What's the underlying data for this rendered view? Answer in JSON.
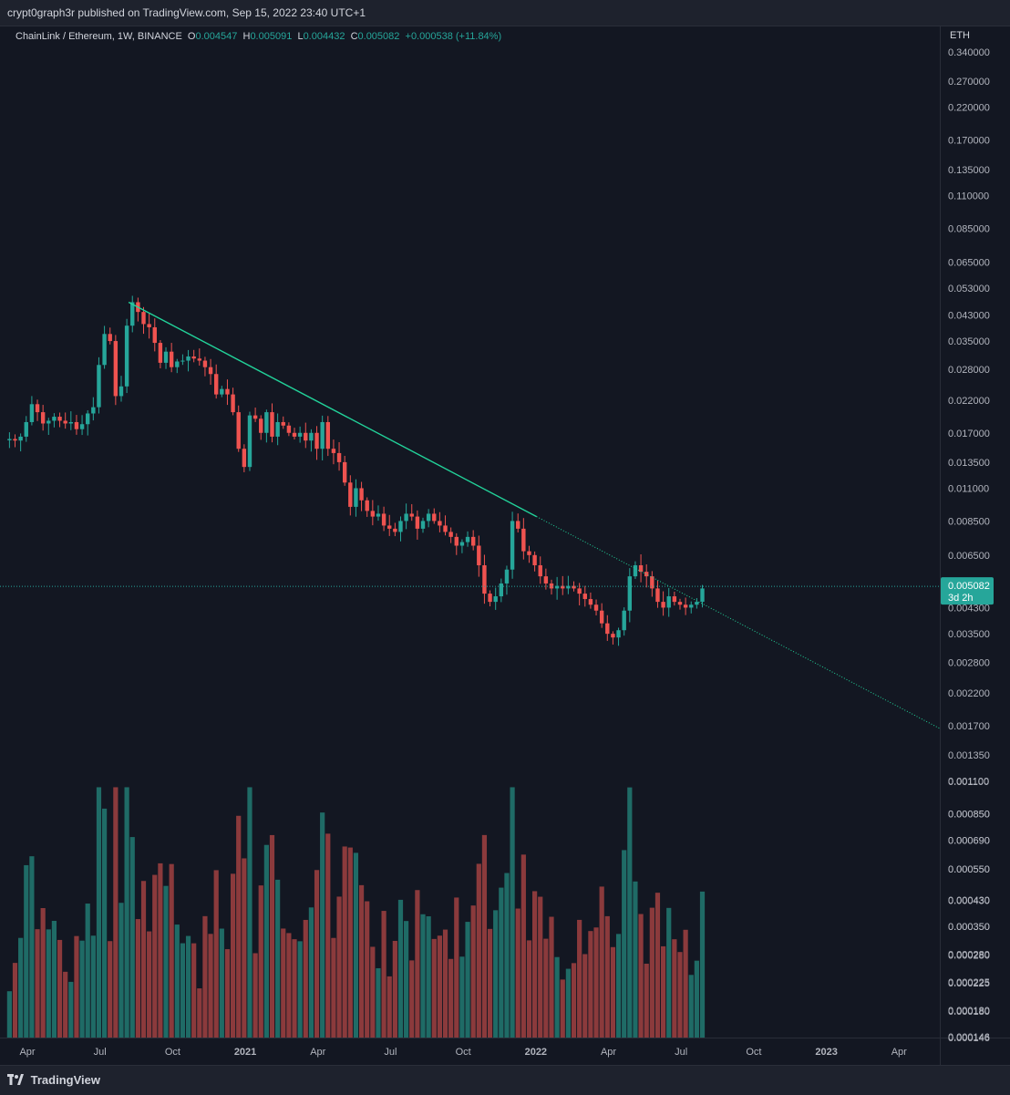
{
  "header": {
    "publish_text": "crypt0graph3r published on TradingView.com, Sep 15, 2022 23:40 UTC+1"
  },
  "legend": {
    "symbol": "ChainLink / Ethereum, 1W, BINANCE",
    "o_label": "O",
    "o_value": "0.004547",
    "h_label": "H",
    "h_value": "0.005091",
    "l_label": "L",
    "l_value": "0.004432",
    "c_label": "C",
    "c_value": "0.005082",
    "change": "+0.000538 (+11.84%)"
  },
  "price_axis": {
    "currency": "ETH",
    "last_price": "0.005082",
    "countdown": "3d 2h"
  },
  "footer": {
    "brand": "TradingView"
  },
  "colors": {
    "up": "#26a69a",
    "down": "#ef5350",
    "up_vol": "#1f6b66",
    "down_vol": "#8b3a3c",
    "trend": "#22d39a"
  },
  "chart_data": {
    "type": "candlestick",
    "scale": "log",
    "price_ticks": [
      0.34,
      0.27,
      0.22,
      0.17,
      0.135,
      0.11,
      0.085,
      0.065,
      0.053,
      0.043,
      0.035,
      0.028,
      0.022,
      0.017,
      0.0135,
      0.011,
      0.0085,
      0.0065,
      0.0053,
      0.0043,
      0.0035,
      0.0028,
      0.0022,
      0.0017,
      0.00135,
      0.0011,
      0.00085,
      0.00069,
      0.00055,
      0.00043,
      0.00035,
      0.00028,
      0.000225,
      0.00018,
      0.000146
    ],
    "price_tick_labels": [
      "0.340000",
      "0.270000",
      "0.220000",
      "0.170000",
      "0.135000",
      "0.110000",
      "0.085000",
      "0.065000",
      "0.053000",
      "0.043000",
      "0.035000",
      "0.028000",
      "0.022000",
      "0.017000",
      "0.013500",
      "0.011000",
      "0.008500",
      "0.006500",
      "0.005300",
      "0.004300",
      "0.003500",
      "0.002800",
      "0.002200",
      "0.001700",
      "0.001350",
      "0.001100",
      "0.000850",
      "0.000690",
      "0.000550",
      "0.000430",
      "0.000350",
      "0.000280",
      "0.000225",
      "0.000180",
      "0.000146"
    ],
    "time_labels": [
      {
        "label": "Apr",
        "week": 0
      },
      {
        "label": "Jul",
        "week": 13
      },
      {
        "label": "Oct",
        "week": 26
      },
      {
        "label": "2021",
        "week": 39
      },
      {
        "label": "Apr",
        "week": 52
      },
      {
        "label": "Jul",
        "week": 65
      },
      {
        "label": "Oct",
        "week": 78
      },
      {
        "label": "2022",
        "week": 91
      },
      {
        "label": "Apr",
        "week": 104
      },
      {
        "label": "Jul",
        "week": 117
      },
      {
        "label": "Oct",
        "week": 130
      },
      {
        "label": "2023",
        "week": 143
      },
      {
        "label": "Apr",
        "week": 156
      }
    ],
    "first_week_index": -3.2,
    "closes": [
      0.0162,
      0.016,
      0.0165,
      0.0185,
      0.0213,
      0.02,
      0.0183,
      0.0187,
      0.0193,
      0.0187,
      0.0183,
      0.0185,
      0.0175,
      0.0182,
      0.0198,
      0.0208,
      0.029,
      0.037,
      0.035,
      0.0227,
      0.0245,
      0.0395,
      0.0475,
      0.044,
      0.04,
      0.039,
      0.0345,
      0.0295,
      0.0322,
      0.0285,
      0.0298,
      0.03,
      0.031,
      0.0305,
      0.03,
      0.0285,
      0.027,
      0.023,
      0.024,
      0.023,
      0.02,
      0.015,
      0.013,
      0.0195,
      0.019,
      0.017,
      0.02,
      0.0165,
      0.0185,
      0.018,
      0.017,
      0.0165,
      0.017,
      0.016,
      0.017,
      0.015,
      0.0185,
      0.015,
      0.0145,
      0.0135,
      0.0115,
      0.0095,
      0.011,
      0.01,
      0.0092,
      0.0088,
      0.009,
      0.0082,
      0.008,
      0.0078,
      0.0085,
      0.009,
      0.0088,
      0.008,
      0.0085,
      0.009,
      0.0085,
      0.0082,
      0.0078,
      0.0075,
      0.007,
      0.0072,
      0.0075,
      0.007,
      0.006,
      0.0048,
      0.0045,
      0.0047,
      0.0052,
      0.0058,
      0.0085,
      0.008,
      0.0067,
      0.0065,
      0.006,
      0.0055,
      0.0052,
      0.005,
      0.0051,
      0.005,
      0.0051,
      0.005,
      0.0048,
      0.0046,
      0.0044,
      0.0042,
      0.0038,
      0.0035,
      0.0034,
      0.0036,
      0.0042,
      0.0055,
      0.006,
      0.0057,
      0.0055,
      0.005,
      0.0045,
      0.0043,
      0.0047,
      0.0045,
      0.0044,
      0.0043,
      0.0044,
      0.0045,
      0.005
    ],
    "volume_ticks": [
      0.0011,
      0.00085,
      0.00069,
      0.00055,
      0.00043,
      0.00035,
      0.00028,
      0.000225,
      0.00018,
      0.000146
    ]
  }
}
